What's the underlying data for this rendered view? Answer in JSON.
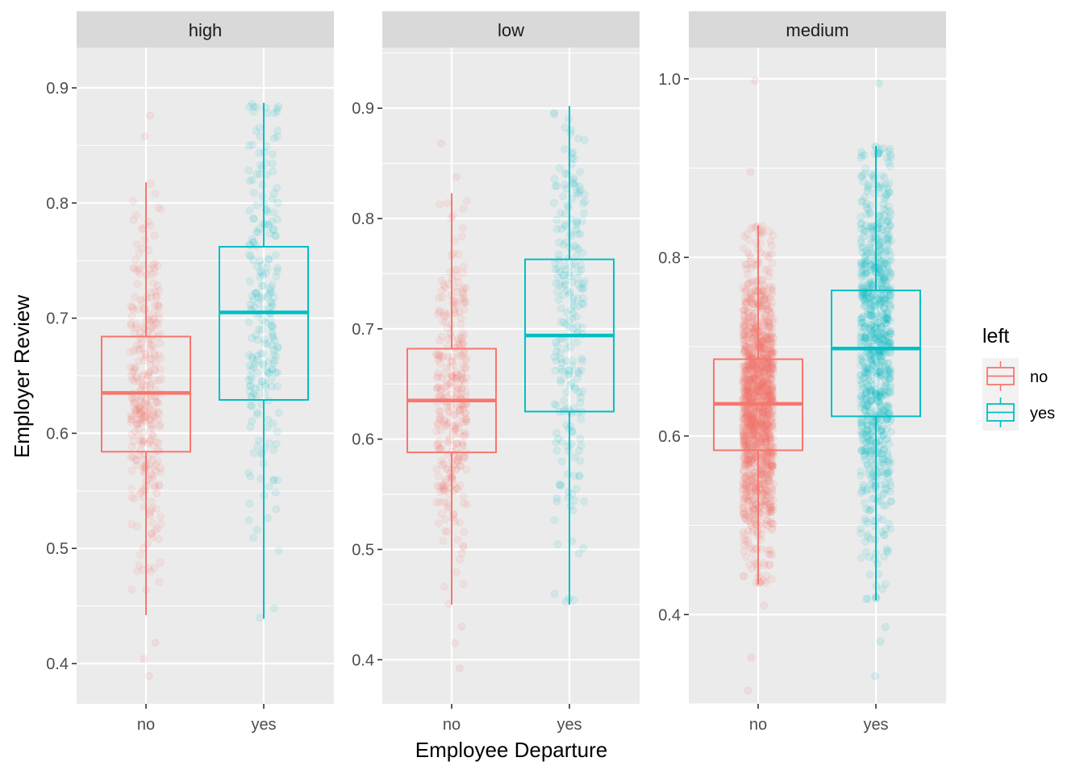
{
  "chart_data": {
    "type": "boxplot",
    "xlabel": "Employee Departure",
    "ylabel": "Employer Review",
    "categories": [
      "no",
      "yes"
    ],
    "legend": {
      "title": "left",
      "position": "right",
      "entries": [
        {
          "label": "no",
          "color": "#F8766D"
        },
        {
          "label": "yes",
          "color": "#00BFC4"
        }
      ]
    },
    "grid": true,
    "panels": [
      {
        "strip": "high",
        "ylim": [
          0.365,
          0.935
        ],
        "yticks": [
          0.4,
          0.5,
          0.6,
          0.7,
          0.8,
          0.9
        ],
        "tick_labels": [
          "0.4",
          "0.5",
          "0.6",
          "0.7",
          "0.8",
          "0.9"
        ],
        "boxes": [
          {
            "category": "no",
            "lower_whisker": 0.442,
            "q1": 0.584,
            "median": 0.635,
            "q3": 0.684,
            "upper_whisker": 0.818,
            "outliers": [
              0.876,
              0.858,
              0.404,
              0.418,
              0.389
            ]
          },
          {
            "category": "yes",
            "lower_whisker": 0.439,
            "q1": 0.629,
            "median": 0.705,
            "q3": 0.762,
            "upper_whisker": 0.887,
            "outliers": []
          }
        ]
      },
      {
        "strip": "low",
        "ylim": [
          0.36,
          0.955
        ],
        "yticks": [
          0.4,
          0.5,
          0.6,
          0.7,
          0.8,
          0.9
        ],
        "tick_labels": [
          "0.4",
          "0.5",
          "0.6",
          "0.7",
          "0.8",
          "0.9"
        ],
        "boxes": [
          {
            "category": "no",
            "lower_whisker": 0.45,
            "q1": 0.588,
            "median": 0.635,
            "q3": 0.682,
            "upper_whisker": 0.823,
            "outliers": [
              0.868,
              0.838,
              0.43,
              0.415,
              0.392
            ]
          },
          {
            "category": "yes",
            "lower_whisker": 0.45,
            "q1": 0.625,
            "median": 0.694,
            "q3": 0.763,
            "upper_whisker": 0.902,
            "outliers": []
          }
        ]
      },
      {
        "strip": "medium",
        "ylim": [
          0.3,
          1.035
        ],
        "yticks": [
          0.4,
          0.6,
          0.8,
          1.0
        ],
        "tick_labels": [
          "0.4",
          "0.6",
          "0.8",
          "1.0"
        ],
        "boxes": [
          {
            "category": "no",
            "lower_whisker": 0.434,
            "q1": 0.584,
            "median": 0.636,
            "q3": 0.686,
            "upper_whisker": 0.836,
            "outliers": [
              0.998,
              0.896,
              0.352,
              0.315,
              0.41
            ]
          },
          {
            "category": "yes",
            "lower_whisker": 0.416,
            "q1": 0.622,
            "median": 0.698,
            "q3": 0.763,
            "upper_whisker": 0.925,
            "outliers": [
              0.995,
              0.386,
              0.37,
              0.331
            ]
          }
        ]
      }
    ]
  }
}
